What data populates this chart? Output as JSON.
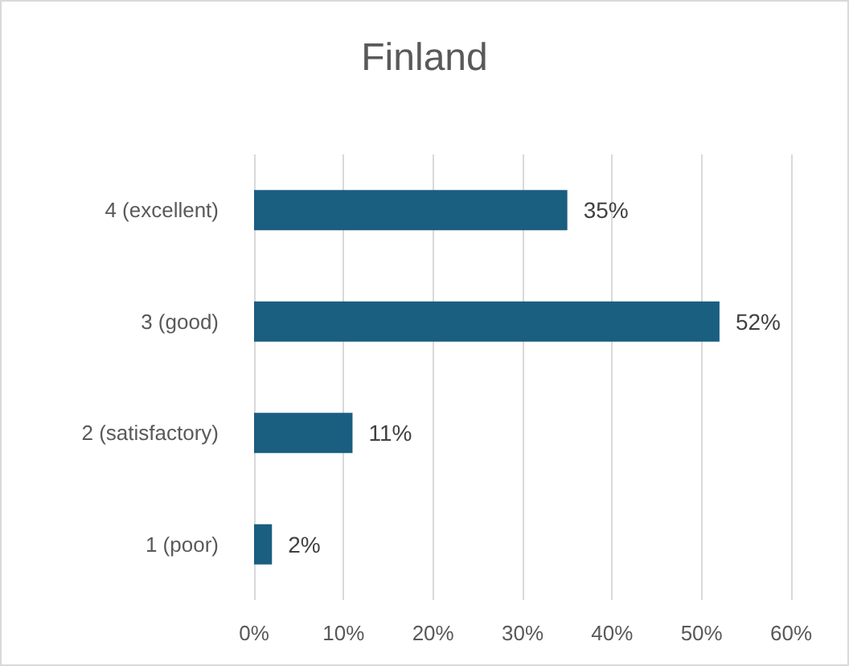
{
  "chart_data": {
    "type": "bar",
    "title": "Finland",
    "orientation": "horizontal",
    "categories": [
      "4 (excellent)",
      "3 (good)",
      "2 (satisfactory)",
      "1 (poor)"
    ],
    "values": [
      35,
      52,
      11,
      2
    ],
    "value_labels": [
      "35%",
      "52%",
      "11%",
      "2%"
    ],
    "color": "#1a5e80",
    "xlim": [
      0,
      60
    ],
    "xticks": [
      {
        "value": 0,
        "label": "0%"
      },
      {
        "value": 10,
        "label": "10%"
      },
      {
        "value": 20,
        "label": "20%"
      },
      {
        "value": 30,
        "label": "30%"
      },
      {
        "value": 40,
        "label": "40%"
      },
      {
        "value": 50,
        "label": "50%"
      },
      {
        "value": 60,
        "label": "60%"
      }
    ],
    "grid": "x"
  }
}
